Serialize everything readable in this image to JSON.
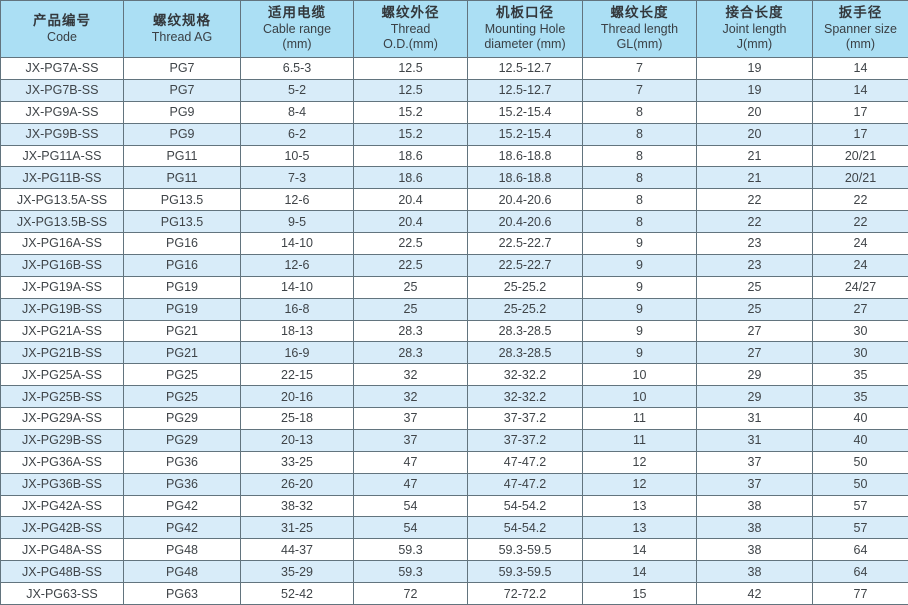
{
  "table": {
    "columns": [
      {
        "key": "code",
        "lines": [
          "产品编号",
          "Code"
        ]
      },
      {
        "key": "thread-ag",
        "lines": [
          "螺纹规格",
          "Thread AG"
        ]
      },
      {
        "key": "cable-range",
        "lines": [
          "适用电缆",
          "Cable range",
          "(mm)"
        ]
      },
      {
        "key": "thread-od",
        "lines": [
          "螺纹外径",
          "Thread",
          "O.D.(mm)"
        ]
      },
      {
        "key": "mounting-hole",
        "lines": [
          "机板口径",
          "Mounting Hole",
          "diameter (mm)"
        ]
      },
      {
        "key": "thread-length",
        "lines": [
          "螺纹长度",
          "Thread length",
          "GL(mm)"
        ]
      },
      {
        "key": "joint-length",
        "lines": [
          "接合长度",
          "Joint length",
          "J(mm)"
        ]
      },
      {
        "key": "spanner-size",
        "lines": [
          "扳手径",
          "Spanner size",
          "(mm)"
        ]
      }
    ],
    "rows": [
      [
        "JX-PG7A-SS",
        "PG7",
        "6.5-3",
        "12.5",
        "12.5-12.7",
        "7",
        "19",
        "14"
      ],
      [
        "JX-PG7B-SS",
        "PG7",
        "5-2",
        "12.5",
        "12.5-12.7",
        "7",
        "19",
        "14"
      ],
      [
        "JX-PG9A-SS",
        "PG9",
        "8-4",
        "15.2",
        "15.2-15.4",
        "8",
        "20",
        "17"
      ],
      [
        "JX-PG9B-SS",
        "PG9",
        "6-2",
        "15.2",
        "15.2-15.4",
        "8",
        "20",
        "17"
      ],
      [
        "JX-PG11A-SS",
        "PG11",
        "10-5",
        "18.6",
        "18.6-18.8",
        "8",
        "21",
        "20/21"
      ],
      [
        "JX-PG11B-SS",
        "PG11",
        "7-3",
        "18.6",
        "18.6-18.8",
        "8",
        "21",
        "20/21"
      ],
      [
        "JX-PG13.5A-SS",
        "PG13.5",
        "12-6",
        "20.4",
        "20.4-20.6",
        "8",
        "22",
        "22"
      ],
      [
        "JX-PG13.5B-SS",
        "PG13.5",
        "9-5",
        "20.4",
        "20.4-20.6",
        "8",
        "22",
        "22"
      ],
      [
        "JX-PG16A-SS",
        "PG16",
        "14-10",
        "22.5",
        "22.5-22.7",
        "9",
        "23",
        "24"
      ],
      [
        "JX-PG16B-SS",
        "PG16",
        "12-6",
        "22.5",
        "22.5-22.7",
        "9",
        "23",
        "24"
      ],
      [
        "JX-PG19A-SS",
        "PG19",
        "14-10",
        "25",
        "25-25.2",
        "9",
        "25",
        "24/27"
      ],
      [
        "JX-PG19B-SS",
        "PG19",
        "16-8",
        "25",
        "25-25.2",
        "9",
        "25",
        "27"
      ],
      [
        "JX-PG21A-SS",
        "PG21",
        "18-13",
        "28.3",
        "28.3-28.5",
        "9",
        "27",
        "30"
      ],
      [
        "JX-PG21B-SS",
        "PG21",
        "16-9",
        "28.3",
        "28.3-28.5",
        "9",
        "27",
        "30"
      ],
      [
        "JX-PG25A-SS",
        "PG25",
        "22-15",
        "32",
        "32-32.2",
        "10",
        "29",
        "35"
      ],
      [
        "JX-PG25B-SS",
        "PG25",
        "20-16",
        "32",
        "32-32.2",
        "10",
        "29",
        "35"
      ],
      [
        "JX-PG29A-SS",
        "PG29",
        "25-18",
        "37",
        "37-37.2",
        "11",
        "31",
        "40"
      ],
      [
        "JX-PG29B-SS",
        "PG29",
        "20-13",
        "37",
        "37-37.2",
        "11",
        "31",
        "40"
      ],
      [
        "JX-PG36A-SS",
        "PG36",
        "33-25",
        "47",
        "47-47.2",
        "12",
        "37",
        "50"
      ],
      [
        "JX-PG36B-SS",
        "PG36",
        "26-20",
        "47",
        "47-47.2",
        "12",
        "37",
        "50"
      ],
      [
        "JX-PG42A-SS",
        "PG42",
        "38-32",
        "54",
        "54-54.2",
        "13",
        "38",
        "57"
      ],
      [
        "JX-PG42B-SS",
        "PG42",
        "31-25",
        "54",
        "54-54.2",
        "13",
        "38",
        "57"
      ],
      [
        "JX-PG48A-SS",
        "PG48",
        "44-37",
        "59.3",
        "59.3-59.5",
        "14",
        "38",
        "64"
      ],
      [
        "JX-PG48B-SS",
        "PG48",
        "35-29",
        "59.3",
        "59.3-59.5",
        "14",
        "38",
        "64"
      ],
      [
        "JX-PG63-SS",
        "PG63",
        "52-42",
        "72",
        "72-72.2",
        "15",
        "42",
        "77"
      ]
    ],
    "colors": {
      "header_bg": "#abdff4",
      "stripe_bg": "#d8ecf9",
      "row_bg": "#ffffff",
      "border": "#62747e",
      "text": "#3f4448"
    }
  }
}
